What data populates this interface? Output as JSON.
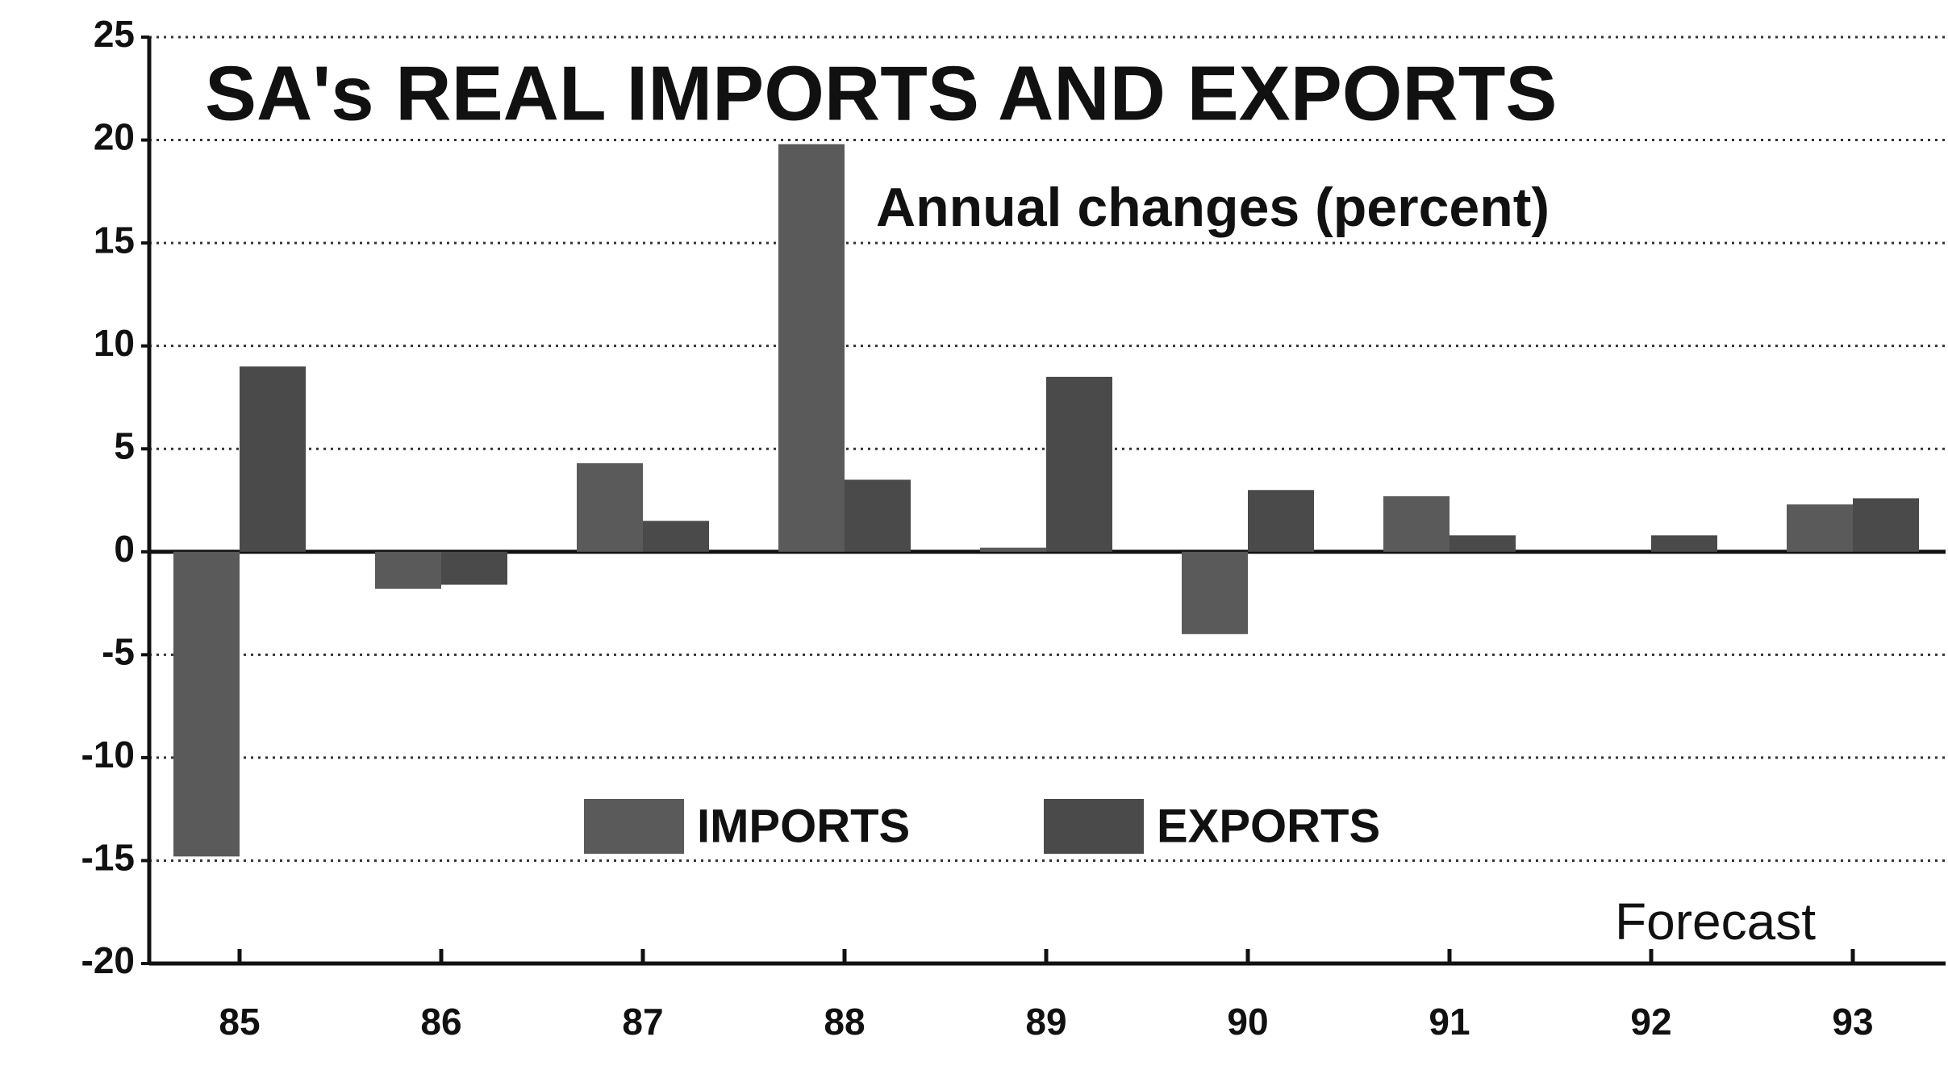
{
  "chart_data": {
    "type": "bar",
    "title": "SA's REAL IMPORTS AND EXPORTS",
    "subtitle": "Annual changes (percent)",
    "annotation": "Forecast",
    "categories": [
      "85",
      "86",
      "87",
      "88",
      "89",
      "90",
      "91",
      "92",
      "93"
    ],
    "series": [
      {
        "name": "IMPORTS",
        "color": "#5a5a5a",
        "values": [
          -14.8,
          -1.8,
          4.3,
          19.8,
          0.2,
          -4,
          2.7,
          0,
          2.3
        ]
      },
      {
        "name": "EXPORTS",
        "color": "#4a4a4a",
        "values": [
          9,
          -1.6,
          1.5,
          3.5,
          8.5,
          3,
          0.8,
          0.8,
          2.6
        ]
      }
    ],
    "ylim": [
      -20,
      25
    ],
    "yticks": [
      -20,
      -15,
      -10,
      -5,
      0,
      5,
      10,
      15,
      20,
      25
    ],
    "grid": true
  }
}
